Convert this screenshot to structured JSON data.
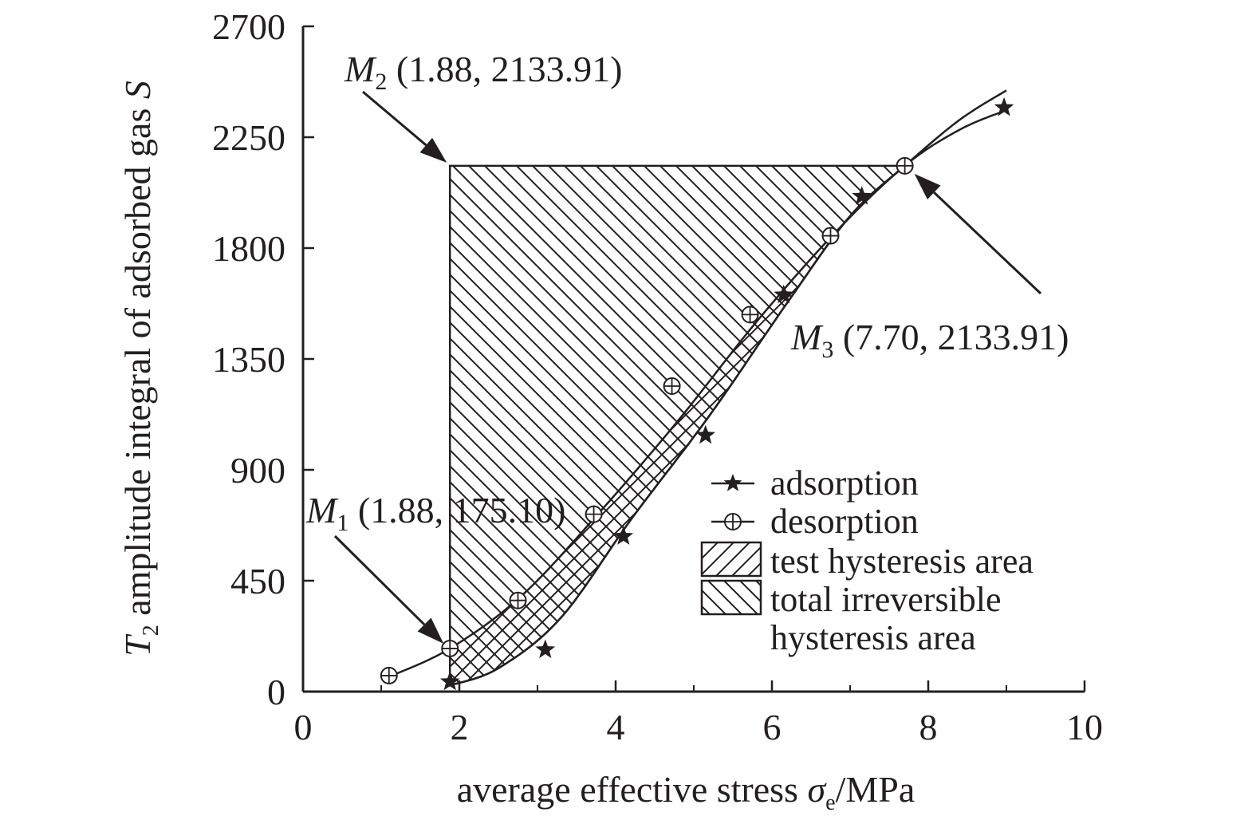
{
  "chart_data": {
    "type": "line",
    "xlabel": {
      "main": "average effective stress ",
      "symbol": "σ",
      "sub": "e",
      "unit": "/MPa"
    },
    "ylabel": {
      "symbol": "T",
      "sub": "2",
      "main": " amplitude integral of adsorbed gas ",
      "var": "S"
    },
    "xlim": [
      0,
      10
    ],
    "ylim": [
      0,
      2700
    ],
    "xticks": [
      "0",
      "2",
      "4",
      "6",
      "8",
      "10"
    ],
    "yticks": [
      "0",
      "450",
      "900",
      "1350",
      "1800",
      "2250",
      "2700"
    ],
    "series": [
      {
        "name": "adsorption",
        "marker": "star",
        "x": [
          1.88,
          3.1,
          4.1,
          5.15,
          6.15,
          7.15,
          8.97
        ],
        "y": [
          40,
          170,
          630,
          1040,
          1610,
          2010,
          2370
        ]
      },
      {
        "name": "desorption",
        "marker": "circle-plus",
        "x": [
          1.1,
          1.88,
          2.75,
          3.72,
          4.72,
          5.72,
          6.75,
          7.7
        ],
        "y": [
          65,
          175,
          370,
          720,
          1240,
          1530,
          1850,
          2134
        ]
      }
    ],
    "annotations": [
      {
        "label": "M",
        "sub": "1",
        "text": " (1.88, 175.10)",
        "x": 1.88,
        "y": 175.1
      },
      {
        "label": "M",
        "sub": "2",
        "text": " (1.88, 2133.91)",
        "x": 1.88,
        "y": 2133.91
      },
      {
        "label": "M",
        "sub": "3",
        "text": " (7.70, 2133.91)",
        "x": 7.7,
        "y": 2133.91
      }
    ],
    "legend": {
      "placement": "center-right",
      "items": [
        {
          "key": "adsorption",
          "text": "adsorption"
        },
        {
          "key": "desorption",
          "text": "desorption"
        },
        {
          "key": "test",
          "text": "test hysteresis area"
        },
        {
          "key": "total",
          "text": "total irreversible",
          "text2": "hysteresis area"
        }
      ]
    },
    "grid": false,
    "colors": {
      "ink": "#231f20"
    }
  }
}
